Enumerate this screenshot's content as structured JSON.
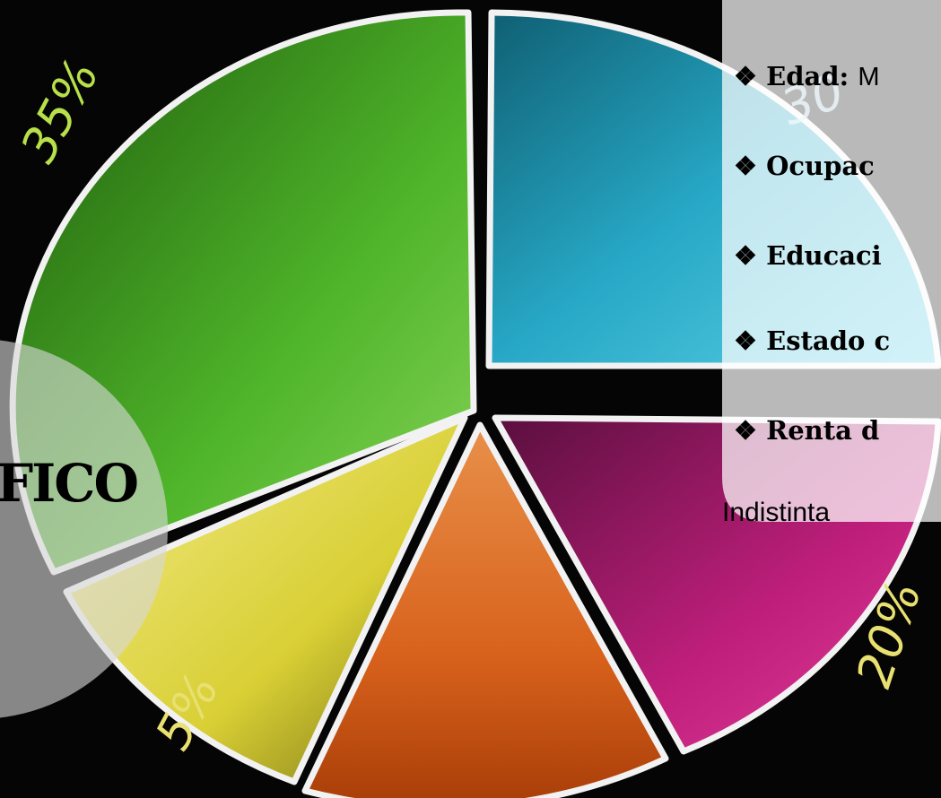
{
  "slide": {
    "pie_labels": [
      "35%",
      "30",
      "20%",
      "5%"
    ],
    "title": "FICO",
    "bullets": [
      {
        "marker": "❖",
        "label": "Edad:",
        "text": "M"
      },
      {
        "marker": "❖",
        "label": "Ocupac"
      },
      {
        "marker": "❖",
        "label": "Educaci"
      },
      {
        "marker": "❖",
        "label": "Estado c"
      },
      {
        "marker": "❖",
        "label": "Renta d"
      }
    ],
    "continuation": "Indistinta"
  }
}
